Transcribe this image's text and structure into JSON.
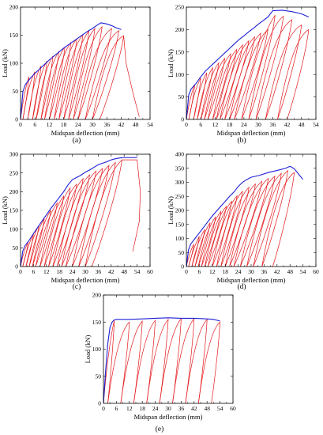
{
  "chart_data": [
    {
      "id": "a",
      "type": "line",
      "panel_label": "(a)",
      "xlabel": "Midspan deflection (mm)",
      "ylabel": "Load (kN)",
      "xlim": [
        0,
        54
      ],
      "ylim": [
        0,
        200
      ],
      "xticks": [
        0,
        6,
        12,
        18,
        24,
        30,
        36,
        42,
        48,
        54
      ],
      "yticks": [
        50,
        100,
        150,
        200
      ],
      "series": [
        {
          "role": "envelope",
          "color": "#1f1fd6",
          "x": [
            0,
            1,
            2,
            4,
            6,
            8,
            10,
            12,
            14,
            16,
            18,
            20,
            22,
            24,
            26,
            28,
            30,
            32,
            33.5,
            36,
            38,
            40,
            42
          ],
          "y": [
            0,
            50,
            62,
            73,
            82,
            90,
            98,
            106,
            113,
            120,
            127,
            133,
            139,
            145,
            151,
            157,
            162,
            168,
            172,
            170,
            167,
            163,
            160
          ]
        },
        {
          "role": "hysteresis",
          "color": "#e4181c",
          "peaks_x": [
            3.5,
            6,
            8.5,
            11,
            13.5,
            16,
            18.5,
            21,
            23.5,
            26,
            28.5,
            31,
            34,
            38,
            41,
            43
          ],
          "peaks_y": [
            76,
            85,
            95,
            104,
            113,
            121,
            129,
            137,
            144,
            151,
            157,
            162,
            165,
            162,
            158,
            149
          ],
          "residual_x": [
            1,
            3,
            5,
            6.5,
            8.5,
            10,
            12,
            14,
            16,
            18,
            20,
            22,
            24,
            27,
            30,
            33
          ],
          "unload_tail_x": [
            44,
            47,
            49.5
          ],
          "unload_tail_y": [
            100,
            45,
            5
          ]
        }
      ]
    },
    {
      "id": "b",
      "type": "line",
      "panel_label": "(b)",
      "xlabel": "Midspan deflection (mm)",
      "ylabel": "Load (kN)",
      "xlim": [
        0,
        54
      ],
      "ylim": [
        0,
        250
      ],
      "xticks": [
        0,
        6,
        12,
        18,
        24,
        30,
        36,
        42,
        48,
        54
      ],
      "yticks": [
        50,
        100,
        150,
        200,
        250
      ],
      "series": [
        {
          "role": "envelope",
          "color": "#1f1fd6",
          "x": [
            0,
            1,
            2,
            4,
            6,
            8,
            10,
            12,
            14,
            16,
            18,
            20,
            22,
            24,
            26,
            28,
            30,
            32,
            34,
            36,
            40,
            44,
            48,
            51
          ],
          "y": [
            0,
            55,
            68,
            80,
            95,
            108,
            118,
            128,
            138,
            148,
            158,
            168,
            178,
            186,
            195,
            203,
            212,
            220,
            228,
            242,
            243,
            240,
            235,
            228
          ]
        },
        {
          "role": "hysteresis",
          "color": "#e4181c",
          "peaks_x": [
            3.5,
            6,
            8.5,
            11,
            13.5,
            16,
            18.5,
            21,
            23.5,
            26,
            28.5,
            31,
            34,
            37,
            40.5,
            44,
            48,
            51
          ],
          "peaks_y": [
            78,
            92,
            104,
            115,
            126,
            136,
            146,
            156,
            166,
            175,
            184,
            192,
            200,
            232,
            230,
            222,
            210,
            200
          ],
          "residual_x": [
            1,
            3,
            4.5,
            6,
            7.5,
            9,
            11,
            12.5,
            14,
            16,
            18,
            20,
            23,
            26,
            29,
            33,
            38,
            42
          ]
        }
      ]
    },
    {
      "id": "c",
      "type": "line",
      "panel_label": "(c)",
      "xlabel": "Midspan deflection (mm)",
      "ylabel": "Load (kN)",
      "xlim": [
        0,
        60
      ],
      "ylim": [
        0,
        300
      ],
      "xticks": [
        0,
        6,
        12,
        18,
        24,
        30,
        36,
        42,
        48,
        54,
        60
      ],
      "yticks": [
        50,
        100,
        150,
        200,
        250,
        300
      ],
      "series": [
        {
          "role": "envelope",
          "color": "#1f1fd6",
          "x": [
            0,
            1,
            2,
            4,
            6,
            8,
            10,
            12,
            14,
            16,
            18,
            20,
            22,
            24,
            26,
            28,
            30,
            32,
            34,
            36,
            38,
            40,
            42,
            44,
            46,
            48,
            54
          ],
          "y": [
            0,
            40,
            55,
            70,
            88,
            105,
            122,
            138,
            155,
            170,
            185,
            200,
            218,
            232,
            238,
            244,
            252,
            258,
            265,
            272,
            276,
            280,
            285,
            288,
            290,
            291,
            291
          ]
        },
        {
          "role": "hysteresis",
          "color": "#e4181c",
          "peaks_x": [
            3.5,
            6,
            8.5,
            11,
            14,
            17,
            20,
            23,
            26,
            29,
            32,
            35,
            38,
            41,
            44,
            47
          ],
          "peaks_y": [
            65,
            88,
            110,
            128,
            150,
            170,
            188,
            210,
            220,
            235,
            245,
            255,
            262,
            270,
            278,
            285
          ],
          "residual_x": [
            1,
            2.5,
            4,
            5.5,
            7,
            9,
            11,
            13,
            15,
            17,
            19,
            21,
            24,
            27,
            30,
            33
          ],
          "unload_tail_x": [
            54,
            55.5,
            55,
            52
          ],
          "unload_tail_y": [
            285,
            200,
            120,
            40
          ]
        }
      ]
    },
    {
      "id": "d",
      "type": "line",
      "panel_label": "(d)",
      "xlabel": "Midspan deflection (mm)",
      "ylabel": "Load (kN)",
      "xlim": [
        0,
        60
      ],
      "ylim": [
        0,
        400
      ],
      "xticks": [
        0,
        6,
        12,
        18,
        24,
        30,
        36,
        42,
        48,
        54,
        60
      ],
      "yticks": [
        50,
        100,
        150,
        200,
        250,
        300,
        350,
        400
      ],
      "series": [
        {
          "role": "envelope",
          "color": "#1f1fd6",
          "x": [
            0,
            1,
            2,
            4,
            6,
            8,
            10,
            12,
            14,
            16,
            18,
            20,
            22,
            24,
            26,
            28,
            30,
            34,
            38,
            42,
            46,
            48,
            50,
            54
          ],
          "y": [
            0,
            60,
            80,
            100,
            120,
            140,
            160,
            180,
            198,
            215,
            232,
            250,
            265,
            285,
            300,
            310,
            318,
            325,
            335,
            342,
            350,
            357,
            348,
            310
          ]
        },
        {
          "role": "hysteresis",
          "color": "#e4181c",
          "peaks_x": [
            3.5,
            6,
            8.5,
            11,
            13.5,
            16,
            18.5,
            21,
            23.5,
            26,
            29,
            32,
            35,
            38,
            41,
            44,
            47,
            50
          ],
          "peaks_y": [
            80,
            108,
            132,
            156,
            176,
            196,
            214,
            232,
            252,
            268,
            282,
            294,
            304,
            314,
            322,
            332,
            342,
            335
          ],
          "residual_x": [
            1,
            2.5,
            4,
            5.5,
            7,
            8.5,
            10,
            12,
            14,
            16,
            18,
            20,
            22,
            25,
            28,
            31,
            35,
            40
          ]
        }
      ]
    },
    {
      "id": "e",
      "type": "line",
      "panel_label": "(e)",
      "xlabel": "Midspan deflection (mm)",
      "ylabel": "Load (kN)",
      "xlim": [
        0,
        60
      ],
      "ylim": [
        0,
        200
      ],
      "xticks": [
        0,
        6,
        12,
        18,
        24,
        30,
        36,
        42,
        48,
        54,
        60
      ],
      "yticks": [
        50,
        100,
        150,
        200
      ],
      "series": [
        {
          "role": "envelope",
          "color": "#1f1fd6",
          "x": [
            0,
            1,
            2,
            3,
            4,
            5,
            6,
            9,
            12,
            18,
            24,
            30,
            36,
            42,
            48,
            51,
            54
          ],
          "y": [
            0,
            60,
            110,
            140,
            150,
            154,
            155,
            155,
            155,
            156,
            157,
            158,
            157,
            157,
            156,
            155,
            152
          ]
        },
        {
          "role": "hysteresis",
          "color": "#e4181c",
          "peaks_x": [
            5,
            12,
            18,
            24,
            30,
            36,
            42,
            48,
            54
          ],
          "peaks_y": [
            153,
            150,
            152,
            153,
            155,
            156,
            156,
            155,
            150
          ],
          "residual_x": [
            2,
            8,
            14,
            20,
            26,
            32,
            38,
            44,
            50
          ]
        }
      ]
    }
  ]
}
